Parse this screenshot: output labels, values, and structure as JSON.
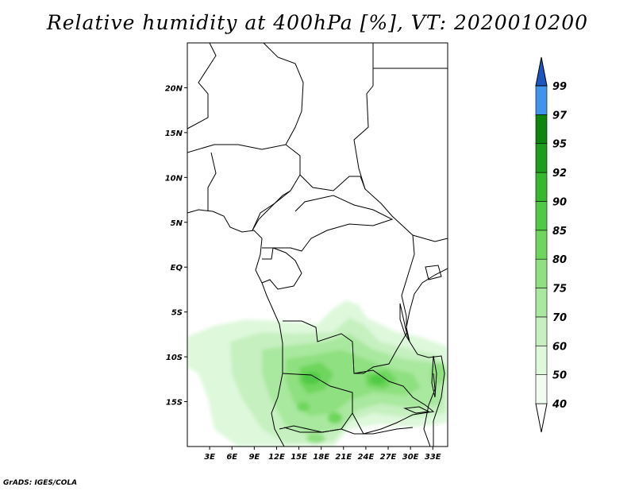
{
  "title": "Relative humidity at 400hPa [%], VT: 2020010200",
  "credit": "GrADS: IGES/COLA",
  "map": {
    "lon_range": [
      0,
      35
    ],
    "lat_range": [
      -20,
      25
    ],
    "lat_ticks": [
      {
        "label": "20N",
        "value": 20
      },
      {
        "label": "15N",
        "value": 15
      },
      {
        "label": "10N",
        "value": 10
      },
      {
        "label": "5N",
        "value": 5
      },
      {
        "label": "EQ",
        "value": 0
      },
      {
        "label": "5S",
        "value": -5
      },
      {
        "label": "10S",
        "value": -10
      },
      {
        "label": "15S",
        "value": -15
      }
    ],
    "lon_ticks": [
      {
        "label": "3E",
        "value": 3
      },
      {
        "label": "6E",
        "value": 6
      },
      {
        "label": "9E",
        "value": 9
      },
      {
        "label": "12E",
        "value": 12
      },
      {
        "label": "15E",
        "value": 15
      },
      {
        "label": "18E",
        "value": 18
      },
      {
        "label": "21E",
        "value": 21
      },
      {
        "label": "24E",
        "value": 24
      },
      {
        "label": "27E",
        "value": 27
      },
      {
        "label": "30E",
        "value": 30
      },
      {
        "label": "33E",
        "value": 33
      }
    ]
  },
  "colorbar": {
    "levels": [
      {
        "label": "40",
        "color": "#f0fcf0"
      },
      {
        "label": "50",
        "color": "#def8dc"
      },
      {
        "label": "60",
        "color": "#c6f0c0"
      },
      {
        "label": "70",
        "color": "#a9e89f"
      },
      {
        "label": "75",
        "color": "#8fe080"
      },
      {
        "label": "80",
        "color": "#6ed65c"
      },
      {
        "label": "85",
        "color": "#4fca44"
      },
      {
        "label": "90",
        "color": "#36b82e"
      },
      {
        "label": "92",
        "color": "#1d9e1a"
      },
      {
        "label": "95",
        "color": "#0c860c"
      },
      {
        "label": "97",
        "color": "#3f95ee"
      },
      {
        "label": "99",
        "color": "#2a72d8"
      }
    ],
    "bottom_color": "#ffffff",
    "top_color": "#1a55c0"
  }
}
